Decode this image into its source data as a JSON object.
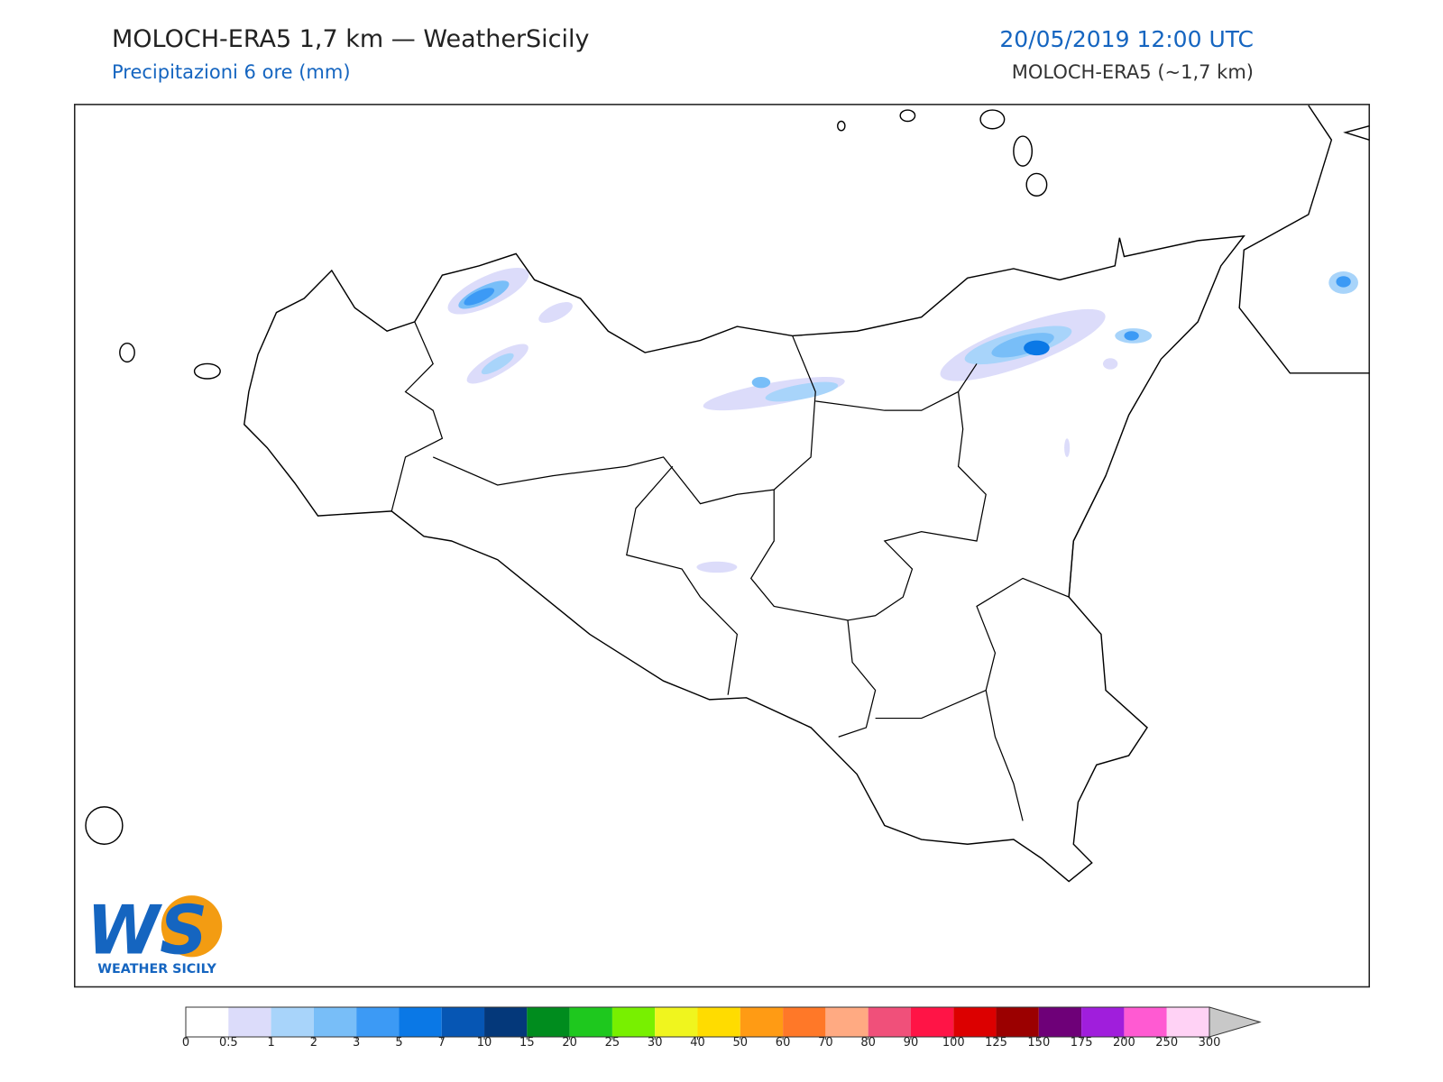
{
  "header": {
    "title": "MOLOCH-ERA5 1,7 km — WeatherSicily",
    "subtitle": "Precipitazioni 6 ore (mm)",
    "datetime": "20/05/2019 12:00 UTC",
    "model": "MOLOCH-ERA5 (~1,7 km)"
  },
  "logo": {
    "letters": "WS",
    "text": "WEATHER SICILY"
  },
  "colorbar": {
    "ticks": [
      0,
      0.5,
      1,
      2,
      3,
      5,
      7,
      10,
      15,
      20,
      25,
      30,
      40,
      50,
      60,
      70,
      80,
      90,
      100,
      125,
      150,
      175,
      200,
      250,
      300
    ],
    "colors": [
      "#ffffff",
      "#dcdcfa",
      "#a8d4fa",
      "#78bef8",
      "#3c9af5",
      "#0a78e6",
      "#0656b4",
      "#04387a",
      "#008c1e",
      "#1ec81e",
      "#78f000",
      "#f0f51e",
      "#ffdc00",
      "#ff9b14",
      "#ff7828",
      "#ffaa82",
      "#f0507a",
      "#ff1446",
      "#dc0000",
      "#9b0000",
      "#6e0078",
      "#a01edc",
      "#ff5ad2",
      "#ffd2f5"
    ],
    "extend_color": "#c8c8c8"
  }
}
